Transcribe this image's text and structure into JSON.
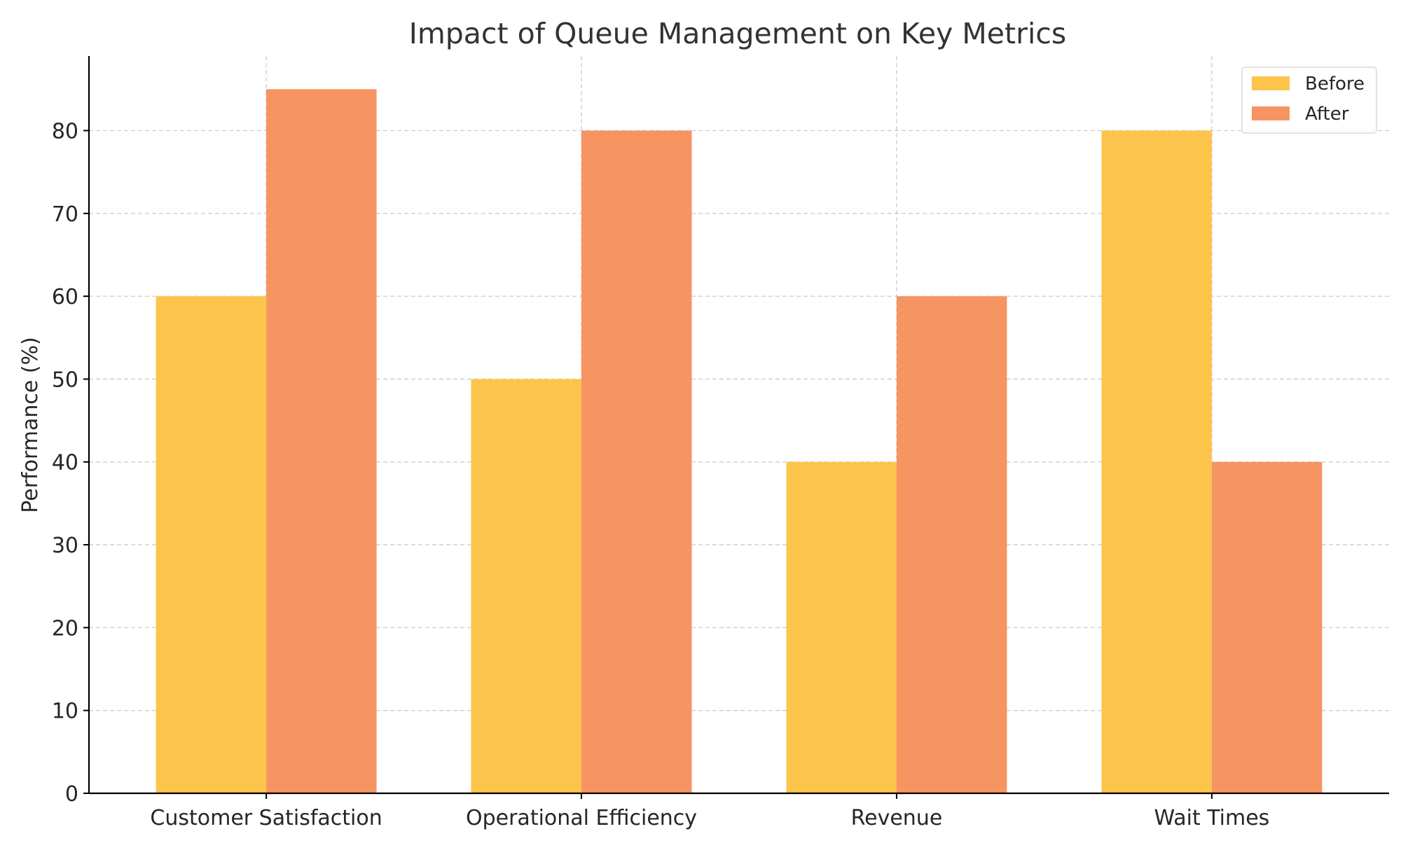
{
  "chart_data": {
    "type": "bar",
    "title": "Impact of Queue Management on Key Metrics",
    "xlabel": "",
    "ylabel": "Performance (%)",
    "categories": [
      "Customer Satisfaction",
      "Operational Efficiency",
      "Revenue",
      "Wait Times"
    ],
    "series": [
      {
        "name": "Before",
        "values": [
          60,
          50,
          40,
          80
        ],
        "color": "#fdc44c"
      },
      {
        "name": "After",
        "values": [
          85,
          80,
          60,
          40
        ],
        "color": "#f69462"
      }
    ],
    "ylim": [
      0,
      89
    ],
    "yticks": [
      0,
      10,
      20,
      30,
      40,
      50,
      60,
      70,
      80
    ],
    "grid": true,
    "legend_position": "top-right"
  }
}
